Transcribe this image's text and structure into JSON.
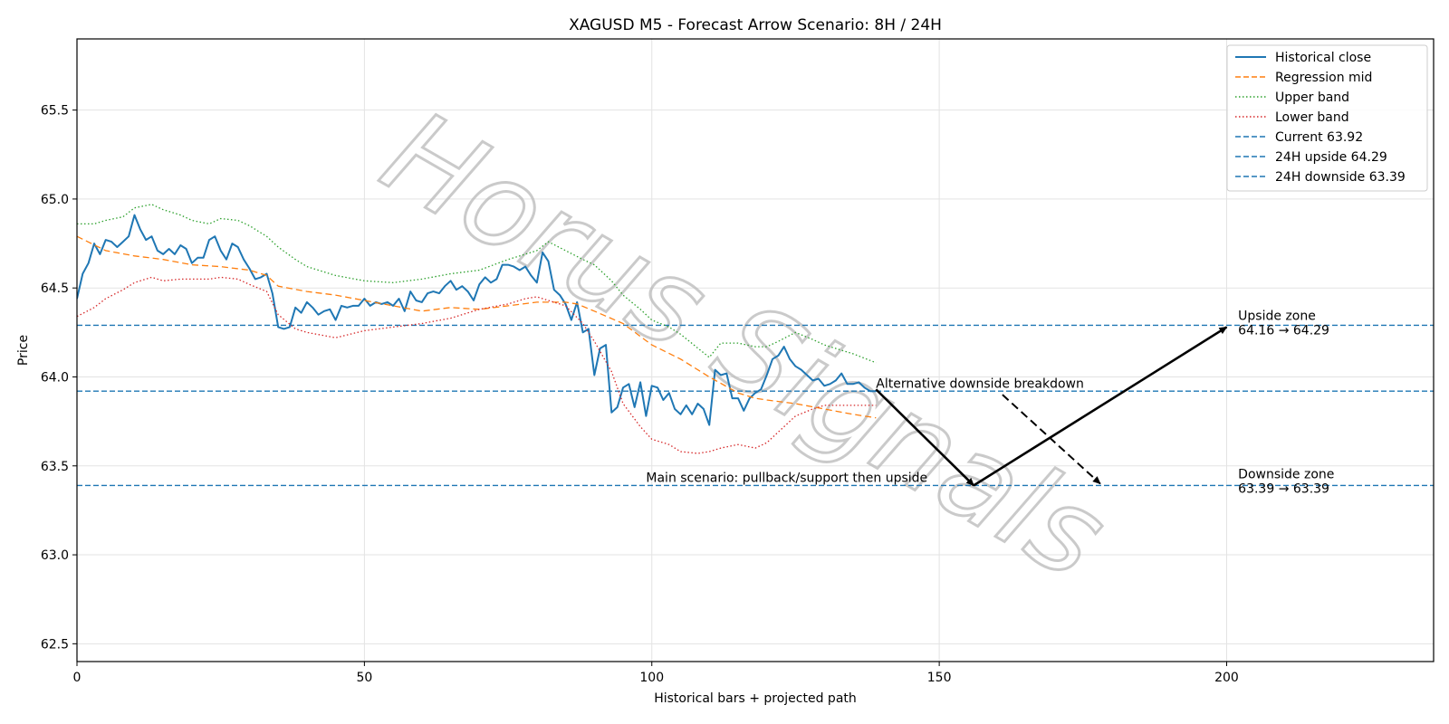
{
  "chart_data": {
    "type": "line",
    "title": "XAGUSD M5 - Forecast Arrow Scenario: 8H / 24H",
    "xlabel": "Historical bars + projected path",
    "ylabel": "Price",
    "xlim": [
      0,
      236
    ],
    "ylim": [
      62.4,
      65.9
    ],
    "xticks": [
      0,
      50,
      100,
      150,
      200
    ],
    "yticks": [
      62.5,
      63.0,
      63.5,
      64.0,
      64.5,
      65.0,
      65.5
    ],
    "ytick_labels": [
      "62.5",
      "63.0",
      "63.5",
      "64.0",
      "64.5",
      "65.0",
      "65.5"
    ],
    "grid": true,
    "legend_position": "top-right",
    "series": [
      {
        "name": "Historical close",
        "style": "solid",
        "color": "#1f77b4",
        "x": [
          0,
          1,
          2,
          3,
          4,
          5,
          6,
          7,
          8,
          9,
          10,
          11,
          12,
          13,
          14,
          15,
          16,
          17,
          18,
          19,
          20,
          21,
          22,
          23,
          24,
          25,
          26,
          27,
          28,
          29,
          30,
          31,
          32,
          33,
          34,
          35,
          36,
          37,
          38,
          39,
          40,
          41,
          42,
          43,
          44,
          45,
          46,
          47,
          48,
          49,
          50,
          51,
          52,
          53,
          54,
          55,
          56,
          57,
          58,
          59,
          60,
          61,
          62,
          63,
          64,
          65,
          66,
          67,
          68,
          69,
          70,
          71,
          72,
          73,
          74,
          75,
          76,
          77,
          78,
          79,
          80,
          81,
          82,
          83,
          84,
          85,
          86,
          87,
          88,
          89,
          90,
          91,
          92,
          93,
          94,
          95,
          96,
          97,
          98,
          99,
          100,
          101,
          102,
          103,
          104,
          105,
          106,
          107,
          108,
          109,
          110,
          111,
          112,
          113,
          114,
          115,
          116,
          117,
          118,
          119,
          120,
          121,
          122,
          123,
          124,
          125,
          126,
          127,
          128,
          129,
          130,
          131,
          132,
          133,
          134,
          135,
          136,
          137,
          138,
          139
        ],
        "y": [
          64.44,
          64.58,
          64.64,
          64.75,
          64.69,
          64.77,
          64.76,
          64.73,
          64.76,
          64.79,
          64.91,
          64.83,
          64.77,
          64.79,
          64.71,
          64.69,
          64.72,
          64.69,
          64.74,
          64.72,
          64.64,
          64.67,
          64.67,
          64.77,
          64.79,
          64.71,
          64.66,
          64.75,
          64.73,
          64.66,
          64.61,
          64.55,
          64.56,
          64.58,
          64.47,
          64.28,
          64.27,
          64.28,
          64.39,
          64.36,
          64.42,
          64.39,
          64.35,
          64.37,
          64.38,
          64.32,
          64.4,
          64.39,
          64.4,
          64.4,
          64.44,
          64.4,
          64.42,
          64.41,
          64.42,
          64.4,
          64.44,
          64.37,
          64.48,
          64.43,
          64.42,
          64.47,
          64.48,
          64.47,
          64.51,
          64.54,
          64.49,
          64.51,
          64.48,
          64.43,
          64.52,
          64.56,
          64.53,
          64.55,
          64.63,
          64.63,
          64.62,
          64.6,
          64.62,
          64.57,
          64.53,
          64.7,
          64.65,
          64.49,
          64.46,
          64.41,
          64.32,
          64.42,
          64.25,
          64.27,
          64.01,
          64.16,
          64.18,
          63.8,
          63.83,
          63.94,
          63.96,
          63.83,
          63.97,
          63.78,
          63.95,
          63.94,
          63.87,
          63.91,
          63.82,
          63.79,
          63.84,
          63.79,
          63.85,
          63.82,
          63.73,
          64.04,
          64.01,
          64.02,
          63.88,
          63.88,
          63.81,
          63.88,
          63.91,
          63.93,
          64.01,
          64.1,
          64.12,
          64.17,
          64.1,
          64.06,
          64.04,
          64.01,
          63.98,
          63.99,
          63.95,
          63.96,
          63.98,
          64.02,
          63.96,
          63.96,
          63.97,
          63.94,
          63.92,
          63.92
        ]
      },
      {
        "name": "Regression mid",
        "style": "dashed",
        "color": "#ff7f0e",
        "x": [
          0,
          5,
          10,
          15,
          20,
          25,
          30,
          33,
          35,
          40,
          45,
          50,
          55,
          60,
          65,
          70,
          75,
          80,
          85,
          87,
          90,
          95,
          100,
          105,
          110,
          115,
          118,
          120,
          125,
          130,
          135,
          139
        ],
        "y": [
          64.79,
          64.71,
          64.68,
          64.66,
          64.63,
          64.62,
          64.6,
          64.57,
          64.51,
          64.48,
          64.46,
          64.43,
          64.4,
          64.37,
          64.39,
          64.38,
          64.4,
          64.42,
          64.42,
          64.41,
          64.37,
          64.3,
          64.18,
          64.1,
          64.0,
          63.91,
          63.88,
          63.87,
          63.85,
          63.82,
          63.79,
          63.77
        ]
      },
      {
        "name": "Upper band",
        "style": "dotted",
        "color": "#2ca02c",
        "x": [
          0,
          3,
          5,
          8,
          10,
          13,
          15,
          18,
          20,
          23,
          25,
          28,
          30,
          33,
          35,
          38,
          40,
          45,
          50,
          55,
          60,
          65,
          70,
          75,
          78,
          80,
          82,
          85,
          88,
          90,
          93,
          95,
          98,
          100,
          103,
          105,
          110,
          112,
          115,
          118,
          120,
          122,
          125,
          128,
          130,
          133,
          135,
          139
        ],
        "y": [
          64.86,
          64.86,
          64.88,
          64.9,
          64.95,
          64.97,
          64.94,
          64.91,
          64.88,
          64.86,
          64.89,
          64.88,
          64.85,
          64.79,
          64.73,
          64.66,
          64.62,
          64.57,
          64.54,
          64.53,
          64.55,
          64.58,
          64.6,
          64.66,
          64.69,
          64.71,
          64.76,
          64.71,
          64.66,
          64.63,
          64.54,
          64.46,
          64.38,
          64.32,
          64.28,
          64.24,
          64.11,
          64.19,
          64.19,
          64.17,
          64.17,
          64.2,
          64.25,
          64.21,
          64.18,
          64.15,
          64.13,
          64.08
        ]
      },
      {
        "name": "Lower band",
        "style": "dotted",
        "color": "#d62728",
        "x": [
          0,
          3,
          5,
          8,
          10,
          13,
          15,
          18,
          20,
          23,
          25,
          28,
          30,
          33,
          35,
          38,
          40,
          45,
          50,
          55,
          60,
          65,
          70,
          75,
          78,
          80,
          82,
          85,
          88,
          90,
          93,
          95,
          98,
          100,
          103,
          105,
          108,
          110,
          112,
          115,
          118,
          120,
          123,
          125,
          128,
          130,
          133,
          135,
          139
        ],
        "y": [
          64.34,
          64.39,
          64.44,
          64.49,
          64.53,
          64.56,
          64.54,
          64.55,
          64.55,
          64.55,
          64.56,
          64.55,
          64.52,
          64.48,
          64.35,
          64.27,
          64.25,
          64.22,
          64.26,
          64.28,
          64.3,
          64.33,
          64.38,
          64.41,
          64.44,
          64.45,
          64.43,
          64.4,
          64.3,
          64.2,
          64.03,
          63.85,
          63.72,
          63.65,
          63.62,
          63.58,
          63.57,
          63.58,
          63.6,
          63.62,
          63.6,
          63.63,
          63.72,
          63.78,
          63.82,
          63.84,
          63.84,
          63.84,
          63.84
        ]
      }
    ],
    "hlines": [
      {
        "name": "Current 63.92",
        "y": 63.92,
        "color": "#1f77b4",
        "style": "dashed"
      },
      {
        "name": "24H upside 64.29",
        "y": 64.29,
        "color": "#1f77b4",
        "style": "dashed"
      },
      {
        "name": "24H downside 63.39",
        "y": 63.39,
        "color": "#1f77b4",
        "style": "dashed"
      }
    ],
    "arrows": [
      {
        "from": [
          139,
          63.93
        ],
        "to": [
          156,
          63.39
        ],
        "style": "solid"
      },
      {
        "from": [
          156,
          63.39
        ],
        "to": [
          200,
          64.28
        ],
        "style": "solid"
      },
      {
        "from": [
          161,
          63.9
        ],
        "to": [
          178,
          63.4
        ],
        "style": "dashed"
      }
    ],
    "annotations": [
      {
        "text": "Upside zone",
        "x": 202,
        "y": 64.32
      },
      {
        "text": "64.16 → 64.29",
        "x": 202,
        "y": 64.24
      },
      {
        "text": "Alternative downside breakdown",
        "x": 139,
        "y": 63.94
      },
      {
        "text": "Main scenario: pullback/support then upside",
        "x": 99,
        "y": 63.41
      },
      {
        "text": "Downside zone",
        "x": 202,
        "y": 63.43
      },
      {
        "text": "63.39 → 63.39",
        "x": 202,
        "y": 63.35
      }
    ],
    "watermark": "Horus Signals"
  }
}
